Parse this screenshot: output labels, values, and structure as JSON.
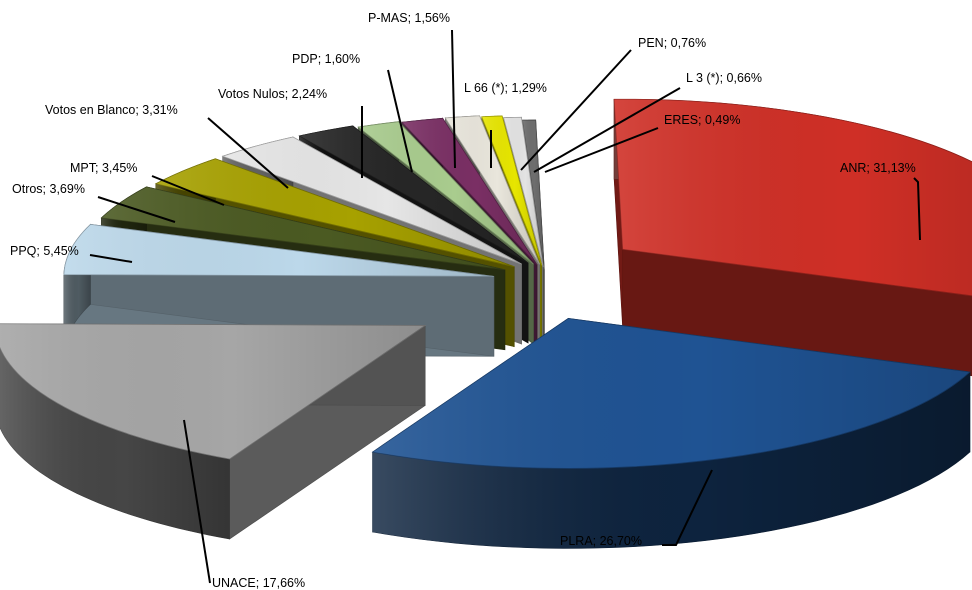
{
  "chart_data": {
    "type": "pie",
    "style": "exploded 3D pie",
    "legend": "none",
    "slices": [
      {
        "label": "ANR; 31,13%",
        "name": "ANR",
        "value": 31.13,
        "color": "#cf2f26"
      },
      {
        "label": "PLRA; 26,70%",
        "name": "PLRA",
        "value": 26.7,
        "color": "#1f5393"
      },
      {
        "label": "UNACE; 17,66%",
        "name": "UNACE",
        "value": 17.66,
        "color": "#a6a6a6"
      },
      {
        "label": "PPQ; 5,45%",
        "name": "PPQ",
        "value": 5.45,
        "color": "#bcd8ea"
      },
      {
        "label": "Otros; 3,69%",
        "name": "Otros",
        "value": 3.69,
        "color": "#4b5a22"
      },
      {
        "label": "MPT; 3,45%",
        "name": "MPT",
        "value": 3.45,
        "color": "#a7a100"
      },
      {
        "label": "Votos en Blanco; 3,31%",
        "name": "Votos en Blanco",
        "value": 3.31,
        "color": "#e6e6e6"
      },
      {
        "label": "Votos Nulos; 2,24%",
        "name": "Votos Nulos",
        "value": 2.24,
        "color": "#262626"
      },
      {
        "label": "PDP; 1,60%",
        "name": "PDP",
        "value": 1.6,
        "color": "#a9cc8e"
      },
      {
        "label": "P-MAS; 1,56%",
        "name": "P-MAS",
        "value": 1.56,
        "color": "#7a2f64"
      },
      {
        "label": "L 66 (*); 1,29%",
        "name": "L 66 (*)",
        "value": 1.29,
        "color": "#e9e6dc"
      },
      {
        "label": "PEN; 0,76%",
        "name": "PEN",
        "value": 0.76,
        "color": "#e7e600"
      },
      {
        "label": "L 3 (*); 0,66%",
        "name": "L 3 (*)",
        "value": 0.66,
        "color": "#e3e3e3"
      },
      {
        "label": "ERES; 0,49%",
        "name": "ERES",
        "value": 0.49,
        "color": "#6e6e6e"
      }
    ]
  }
}
